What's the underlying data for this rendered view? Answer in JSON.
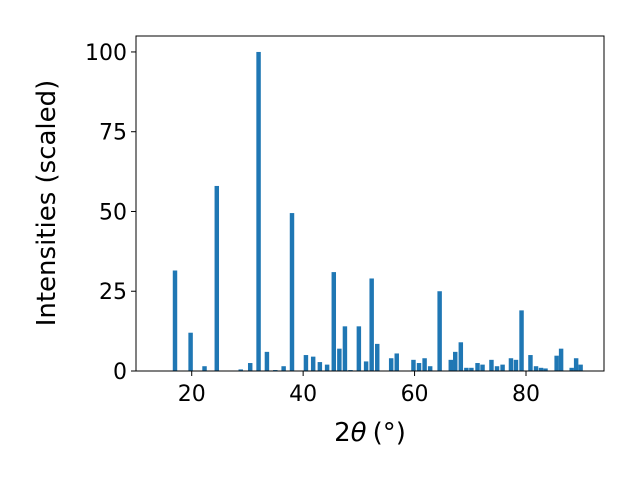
{
  "chart_data": {
    "type": "bar",
    "xlabel_main": "2",
    "xlabel_symbol": "θ",
    "xlabel_unit": "(°)",
    "ylabel": "Intensities (scaled)",
    "xlim": [
      10,
      94
    ],
    "ylim": [
      0,
      105
    ],
    "xticks": [
      20,
      40,
      60,
      80
    ],
    "yticks": [
      0,
      25,
      50,
      75,
      100
    ],
    "grid": false,
    "bar_width": 0.8,
    "color": "#1f77b4",
    "x": [
      17.0,
      19.8,
      22.3,
      24.5,
      28.8,
      30.5,
      32.0,
      33.5,
      35.0,
      36.5,
      38.0,
      40.5,
      41.8,
      43.0,
      44.3,
      45.5,
      46.5,
      47.5,
      48.5,
      50.0,
      51.3,
      52.3,
      53.3,
      55.8,
      56.8,
      59.8,
      60.8,
      61.8,
      62.8,
      64.5,
      66.5,
      67.3,
      68.3,
      69.3,
      70.2,
      71.3,
      72.2,
      73.8,
      74.8,
      75.8,
      77.3,
      78.2,
      79.2,
      80.8,
      81.8,
      82.7,
      83.5,
      85.5,
      86.3,
      88.2,
      89.0,
      89.8
    ],
    "values": [
      31.5,
      12.0,
      1.5,
      58.0,
      0.5,
      2.5,
      100.0,
      6.0,
      0.3,
      1.5,
      49.5,
      5.0,
      4.5,
      2.8,
      2.0,
      31.0,
      7.0,
      14.0,
      0.3,
      14.0,
      3.0,
      29.0,
      8.5,
      4.0,
      5.5,
      3.5,
      2.5,
      4.0,
      1.5,
      25.0,
      3.5,
      6.0,
      9.0,
      1.0,
      1.0,
      2.5,
      2.0,
      3.5,
      1.5,
      2.0,
      4.0,
      3.5,
      19.0,
      5.0,
      1.5,
      1.0,
      0.8,
      4.8,
      7.0,
      1.0,
      4.0,
      2.0
    ]
  }
}
